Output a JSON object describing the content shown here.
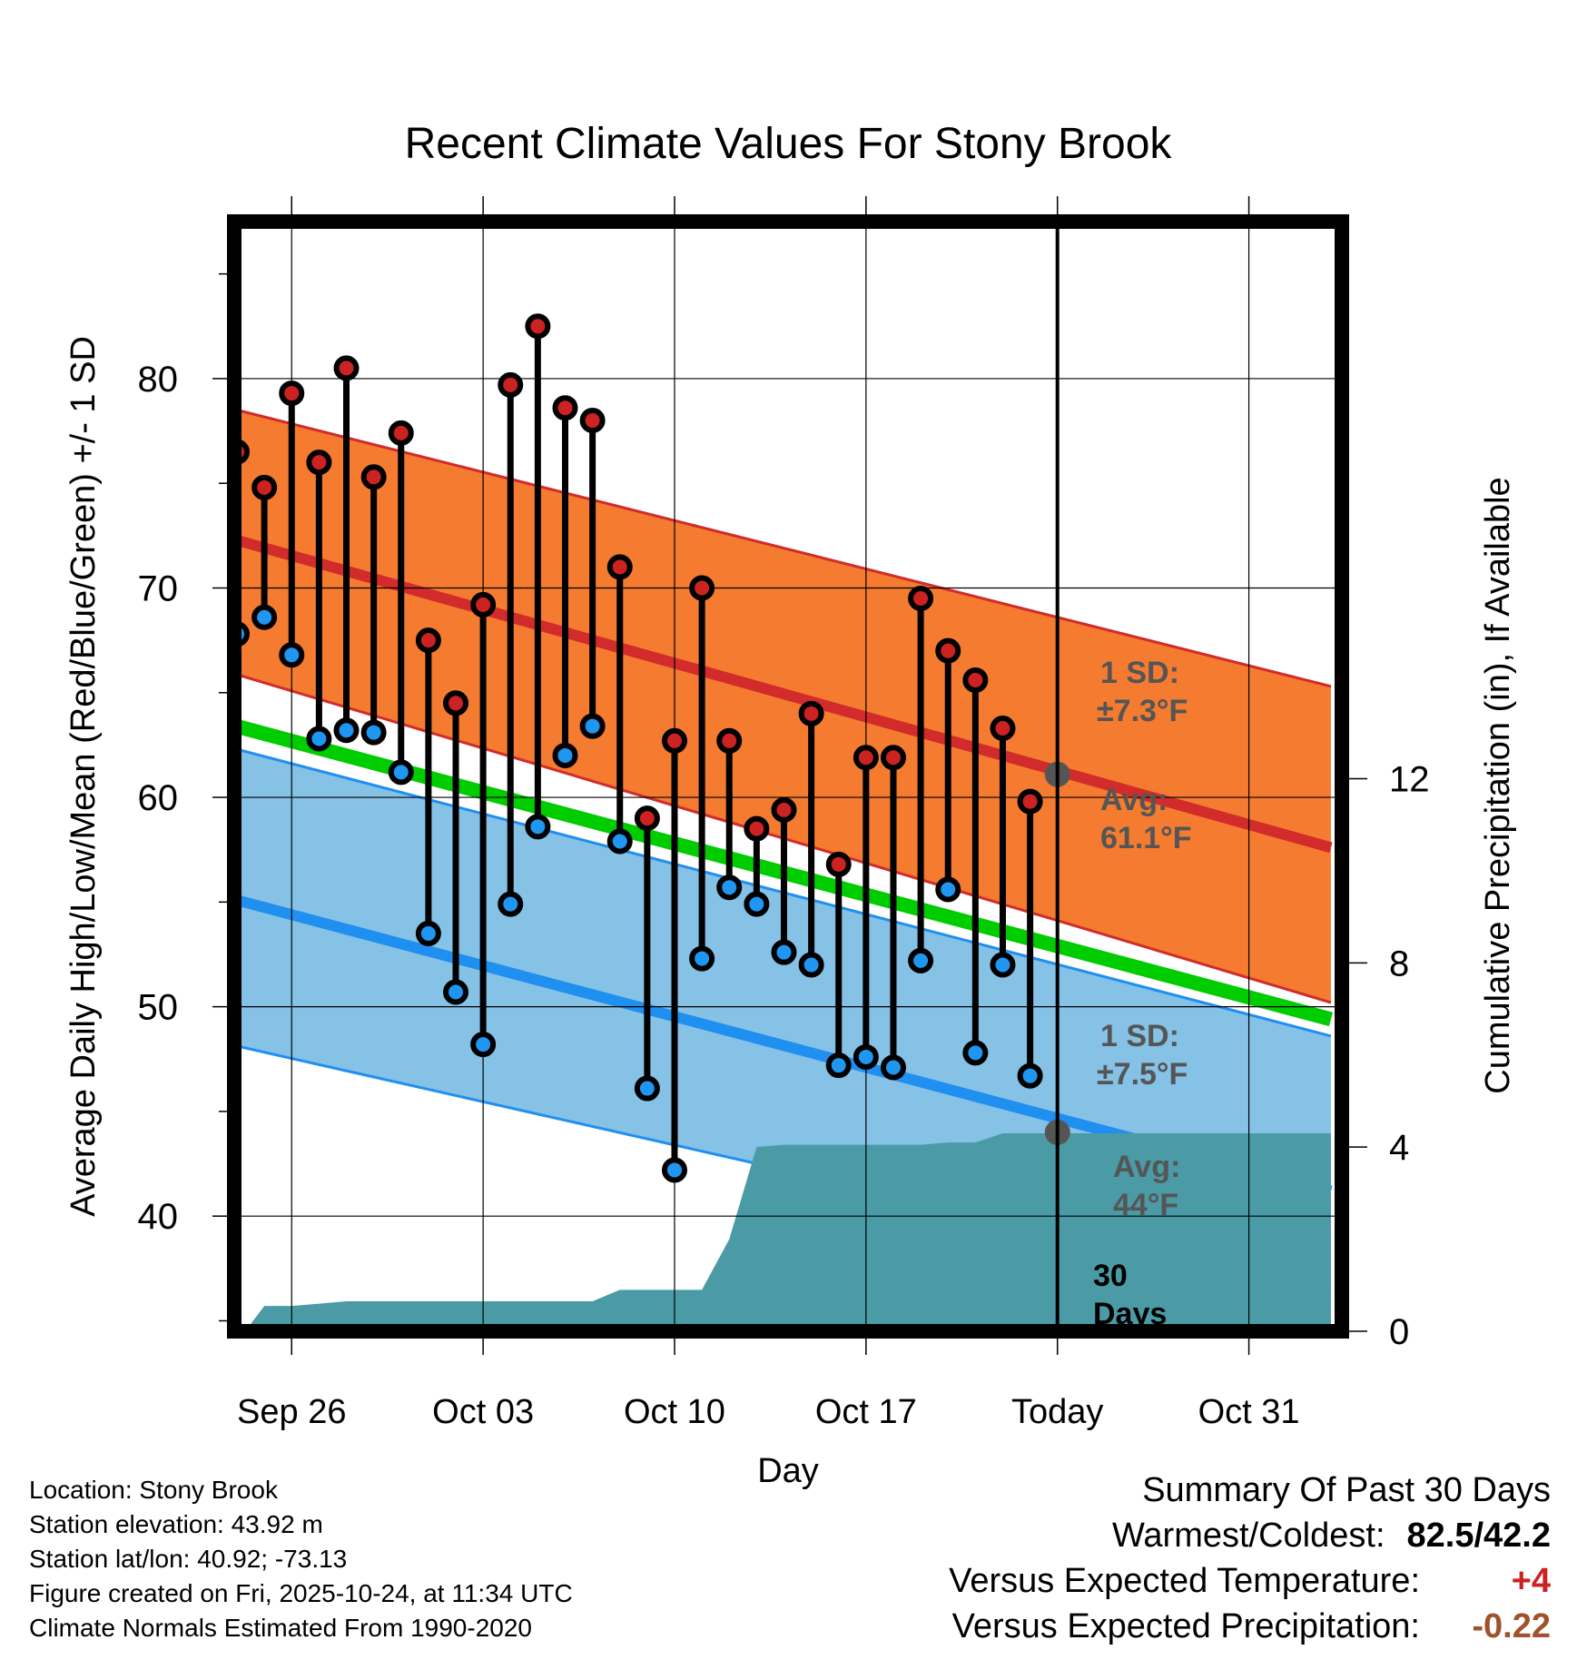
{
  "chart_data": {
    "type": "range-bar",
    "title": "Recent Climate Values For Stony Brook",
    "xlabel": "Day",
    "ylabel_left": "Average Daily High/Low/Mean (Red/Blue/Green) +/- 1 SD",
    "ylabel_right": "Cumulative Precipitation (in), If Available",
    "ylim_left": [
      34.5,
      87.5
    ],
    "yticks_left": [
      40,
      50,
      60,
      70,
      80
    ],
    "ylim_right": [
      0,
      24.1
    ],
    "yticks_right": [
      0,
      4,
      8,
      12
    ],
    "xlim": [
      -2.1,
      38.4
    ],
    "xticks": [
      {
        "day": 0,
        "label": "Sep 26"
      },
      {
        "day": 7,
        "label": "Oct 03"
      },
      {
        "day": 14,
        "label": "Oct 10"
      },
      {
        "day": 21,
        "label": "Oct 17"
      },
      {
        "day": 28,
        "label": "Today"
      },
      {
        "day": 35,
        "label": "Oct 31"
      }
    ],
    "today_day": 28,
    "daily": {
      "day": [
        -2,
        -1,
        0,
        1,
        2,
        3,
        4,
        5,
        6,
        7,
        8,
        9,
        10,
        11,
        12,
        13,
        14,
        15,
        16,
        17,
        18,
        19,
        20,
        21,
        22,
        23,
        24,
        25,
        26,
        27
      ],
      "high": [
        76.5,
        74.8,
        79.3,
        76.0,
        80.5,
        75.3,
        77.4,
        67.5,
        64.5,
        69.2,
        79.7,
        82.5,
        78.6,
        78.0,
        71.0,
        59.0,
        62.7,
        70.0,
        62.7,
        58.5,
        59.4,
        64.0,
        56.8,
        61.9,
        61.9,
        69.5,
        67.0,
        65.6,
        63.3,
        59.8
      ],
      "low": [
        67.8,
        68.6,
        66.8,
        62.8,
        63.2,
        63.1,
        61.2,
        53.5,
        50.7,
        48.2,
        54.9,
        58.6,
        62.0,
        63.4,
        57.9,
        46.1,
        42.2,
        52.3,
        55.7,
        54.9,
        52.6,
        52.0,
        47.2,
        47.6,
        47.1,
        52.2,
        55.6,
        47.8,
        52.0,
        46.7
      ]
    },
    "normals": {
      "day": [
        -2.6,
        38.0
      ],
      "high_avg": [
        72.5,
        57.6
      ],
      "high_plus_sd": [
        78.7,
        65.3
      ],
      "high_minus_sd": [
        66.1,
        50.2
      ],
      "mean_avg": [
        63.6,
        49.4
      ],
      "low_avg": [
        55.3,
        41.2
      ],
      "low_plus_sd": [
        62.5,
        48.6
      ],
      "low_minus_sd": [
        48.3,
        36.3
      ]
    },
    "precip_cumulative": {
      "day": [
        -2,
        -1.7,
        -1,
        0,
        1,
        2,
        3,
        4,
        5,
        6,
        7,
        8,
        9,
        10,
        11,
        12,
        13,
        14,
        15,
        16,
        17,
        18,
        19,
        20,
        21,
        22,
        23,
        24,
        25,
        26,
        27,
        28,
        29,
        30,
        31,
        32,
        33,
        34,
        35,
        36,
        37,
        38
      ],
      "value": [
        0.0,
        0.0,
        0.55,
        0.55,
        0.6,
        0.65,
        0.65,
        0.65,
        0.65,
        0.65,
        0.65,
        0.65,
        0.65,
        0.65,
        0.65,
        0.9,
        0.9,
        0.9,
        0.9,
        2.0,
        4.0,
        4.05,
        4.05,
        4.05,
        4.05,
        4.05,
        4.05,
        4.1,
        4.1,
        4.3,
        4.3,
        4.3,
        4.3,
        4.3,
        4.3,
        4.3,
        4.3,
        4.3,
        4.3,
        4.3,
        4.3,
        4.3
      ]
    },
    "annotations": {
      "high_sd_label": [
        "1 SD:",
        "±7.3°F"
      ],
      "high_avg_label": [
        "Avg:",
        "61.1°F"
      ],
      "low_sd_label": [
        "1 SD:",
        "±7.5°F"
      ],
      "low_avg_label": [
        "Avg:",
        "44°F"
      ],
      "today_high_avg": 61.1,
      "today_low_avg": 44,
      "window_label": [
        "30",
        "Days"
      ]
    },
    "colors": {
      "high_band": "#f47b2f",
      "high_line": "#d22b2b",
      "high_marker": "#cc2222",
      "low_band": "#86c1e6",
      "low_line": "#1f8ff0",
      "low_marker": "#1f97f2",
      "mean_line": "#00cc00",
      "precip": "#4a9ba6",
      "annotation": "#555555"
    }
  },
  "info": {
    "location": "Location: Stony Brook",
    "elevation": "Station elevation: 43.92 m",
    "latlon": "Station lat/lon: 40.92; -73.13",
    "created": "Figure created on Fri, 2025-10-24, at 11:34 UTC",
    "normals": "Climate Normals Estimated From 1990-2020"
  },
  "summary": {
    "title": "Summary Of Past 30 Days",
    "warmest_label": "Warmest/Coldest:",
    "warmest_value": "82.5/42.2",
    "temp_label": "Versus Expected Temperature:",
    "temp_value": "+4",
    "temp_color": "#cc2222",
    "precip_label": "Versus Expected Precipitation:",
    "precip_value": "-0.22",
    "precip_color": "#a0522d"
  }
}
